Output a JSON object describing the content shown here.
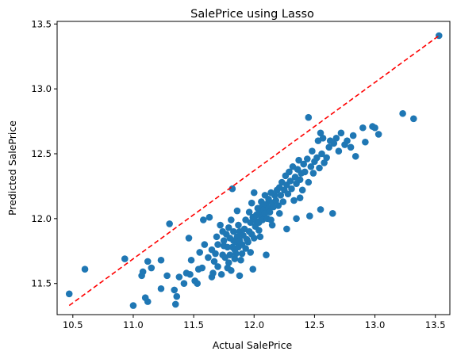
{
  "chart_data": {
    "type": "scatter",
    "title": "SalePrice using Lasso",
    "xlabel": "Actual SalePrice",
    "ylabel": "Predicted SalePrice",
    "xlim": [
      10.37,
      13.62
    ],
    "ylim": [
      11.26,
      13.52
    ],
    "xticks": [
      "10.5",
      "11.0",
      "11.5",
      "12.0",
      "12.5",
      "13.0",
      "13.5"
    ],
    "yticks": [
      "11.5",
      "12.0",
      "12.5",
      "13.0",
      "13.5"
    ],
    "grid": false,
    "legend": "none",
    "point_color": "#1f77b4",
    "reference_line": {
      "x": [
        10.47,
        13.53
      ],
      "y": [
        11.33,
        13.41
      ],
      "color": "#ff0000",
      "style": "dashed"
    },
    "points": [
      [
        10.47,
        11.42
      ],
      [
        10.6,
        11.61
      ],
      [
        10.93,
        11.69
      ],
      [
        11.0,
        11.33
      ],
      [
        11.07,
        11.56
      ],
      [
        11.1,
        11.39
      ],
      [
        11.12,
        11.36
      ],
      [
        11.12,
        11.67
      ],
      [
        11.08,
        11.59
      ],
      [
        11.15,
        11.62
      ],
      [
        11.23,
        11.68
      ],
      [
        11.28,
        11.56
      ],
      [
        11.23,
        11.46
      ],
      [
        11.3,
        11.96
      ],
      [
        11.34,
        11.45
      ],
      [
        11.35,
        11.34
      ],
      [
        11.36,
        11.4
      ],
      [
        11.38,
        11.55
      ],
      [
        11.42,
        11.5
      ],
      [
        11.44,
        11.58
      ],
      [
        11.47,
        11.57
      ],
      [
        11.46,
        11.85
      ],
      [
        11.48,
        11.68
      ],
      [
        11.51,
        11.52
      ],
      [
        11.53,
        11.5
      ],
      [
        11.54,
        11.61
      ],
      [
        11.57,
        11.62
      ],
      [
        11.55,
        11.74
      ],
      [
        11.59,
        11.8
      ],
      [
        11.62,
        11.7
      ],
      [
        11.58,
        11.99
      ],
      [
        11.63,
        12.01
      ],
      [
        11.65,
        11.55
      ],
      [
        11.66,
        11.58
      ],
      [
        11.65,
        11.76
      ],
      [
        11.67,
        11.67
      ],
      [
        11.68,
        11.73
      ],
      [
        11.69,
        11.86
      ],
      [
        11.7,
        11.8
      ],
      [
        11.7,
        11.63
      ],
      [
        11.72,
        11.95
      ],
      [
        11.73,
        11.57
      ],
      [
        11.74,
        11.72
      ],
      [
        11.75,
        11.79
      ],
      [
        11.75,
        11.83
      ],
      [
        11.76,
        11.7
      ],
      [
        11.77,
        11.88
      ],
      [
        11.78,
        11.78
      ],
      [
        11.79,
        11.66
      ],
      [
        11.79,
        11.93
      ],
      [
        11.8,
        11.85
      ],
      [
        11.8,
        11.72
      ],
      [
        11.81,
        11.6
      ],
      [
        11.81,
        11.99
      ],
      [
        11.82,
        12.23
      ],
      [
        11.82,
        11.78
      ],
      [
        11.83,
        11.83
      ],
      [
        11.83,
        11.9
      ],
      [
        11.84,
        11.69
      ],
      [
        11.84,
        11.76
      ],
      [
        11.85,
        11.82
      ],
      [
        11.85,
        11.73
      ],
      [
        11.86,
        11.86
      ],
      [
        11.86,
        12.06
      ],
      [
        11.87,
        11.95
      ],
      [
        11.87,
        11.78
      ],
      [
        11.88,
        11.83
      ],
      [
        11.88,
        11.9
      ],
      [
        11.89,
        11.68
      ],
      [
        11.9,
        11.8
      ],
      [
        11.9,
        11.73
      ],
      [
        11.91,
        11.87
      ],
      [
        11.92,
        11.92
      ],
      [
        11.93,
        11.77
      ],
      [
        11.94,
        11.84
      ],
      [
        11.95,
        11.82
      ],
      [
        11.96,
        11.9
      ],
      [
        11.97,
        11.97
      ],
      [
        11.97,
        11.74
      ],
      [
        11.98,
        11.88
      ],
      [
        11.99,
        12.01
      ],
      [
        11.98,
        12.12
      ],
      [
        12.0,
        11.85
      ],
      [
        12.01,
        11.94
      ],
      [
        12.02,
        12.03
      ],
      [
        12.02,
        11.98
      ],
      [
        12.03,
        12.08
      ],
      [
        12.04,
        11.91
      ],
      [
        12.04,
        12.05
      ],
      [
        12.05,
        11.86
      ],
      [
        12.06,
        12.01
      ],
      [
        12.06,
        12.13
      ],
      [
        12.07,
        12.1
      ],
      [
        12.07,
        11.99
      ],
      [
        12.08,
        12.07
      ],
      [
        12.09,
        12.04
      ],
      [
        12.09,
        12.18
      ],
      [
        12.1,
        12.11
      ],
      [
        12.11,
        12.0
      ],
      [
        12.12,
        12.08
      ],
      [
        12.12,
        12.15
      ],
      [
        12.13,
        12.05
      ],
      [
        12.14,
        12.2
      ],
      [
        12.15,
        12.12
      ],
      [
        12.15,
        11.95
      ],
      [
        12.16,
        12.09
      ],
      [
        12.17,
        12.18
      ],
      [
        12.18,
        12.14
      ],
      [
        12.19,
        12.22
      ],
      [
        12.2,
        12.1
      ],
      [
        12.21,
        12.24
      ],
      [
        12.21,
        12.04
      ],
      [
        12.22,
        12.18
      ],
      [
        12.23,
        12.28
      ],
      [
        12.24,
        12.13
      ],
      [
        12.25,
        12.22
      ],
      [
        12.26,
        12.33
      ],
      [
        12.27,
        12.26
      ],
      [
        12.28,
        12.19
      ],
      [
        12.29,
        12.36
      ],
      [
        12.3,
        12.29
      ],
      [
        12.31,
        12.23
      ],
      [
        12.32,
        12.4
      ],
      [
        12.33,
        12.14
      ],
      [
        12.34,
        12.32
      ],
      [
        12.35,
        12.27
      ],
      [
        12.36,
        12.38
      ],
      [
        12.37,
        12.45
      ],
      [
        12.38,
        12.3
      ],
      [
        12.39,
        12.35
      ],
      [
        12.4,
        12.22
      ],
      [
        12.41,
        12.42
      ],
      [
        12.42,
        12.36
      ],
      [
        12.44,
        12.46
      ],
      [
        12.45,
        12.78
      ],
      [
        12.45,
        12.28
      ],
      [
        12.47,
        12.4
      ],
      [
        12.48,
        12.52
      ],
      [
        12.49,
        12.35
      ],
      [
        12.5,
        12.44
      ],
      [
        12.52,
        12.47
      ],
      [
        12.53,
        12.6
      ],
      [
        12.54,
        12.39
      ],
      [
        12.55,
        12.66
      ],
      [
        12.56,
        12.5
      ],
      [
        12.57,
        12.62
      ],
      [
        12.58,
        12.43
      ],
      [
        12.6,
        12.47
      ],
      [
        12.62,
        12.55
      ],
      [
        12.63,
        12.6
      ],
      [
        12.65,
        12.04
      ],
      [
        12.66,
        12.58
      ],
      [
        12.68,
        12.62
      ],
      [
        12.7,
        12.52
      ],
      [
        12.72,
        12.66
      ],
      [
        12.75,
        12.57
      ],
      [
        12.77,
        12.6
      ],
      [
        12.8,
        12.55
      ],
      [
        12.82,
        12.64
      ],
      [
        12.84,
        12.48
      ],
      [
        12.9,
        12.7
      ],
      [
        12.92,
        12.59
      ],
      [
        12.98,
        12.71
      ],
      [
        13.0,
        12.7
      ],
      [
        13.03,
        12.65
      ],
      [
        13.23,
        12.81
      ],
      [
        13.32,
        12.77
      ],
      [
        13.53,
        13.41
      ],
      [
        12.14,
        11.99
      ],
      [
        12.35,
        12.0
      ],
      [
        12.46,
        12.02
      ],
      [
        12.55,
        12.07
      ],
      [
        12.38,
        12.16
      ],
      [
        11.96,
        12.05
      ],
      [
        12.27,
        11.92
      ],
      [
        11.78,
        11.62
      ],
      [
        11.99,
        11.61
      ],
      [
        11.88,
        11.56
      ],
      [
        12.1,
        11.72
      ],
      [
        11.93,
        11.99
      ],
      [
        12.0,
        12.2
      ],
      [
        12.04,
        11.97
      ],
      [
        11.74,
        11.9
      ]
    ]
  }
}
